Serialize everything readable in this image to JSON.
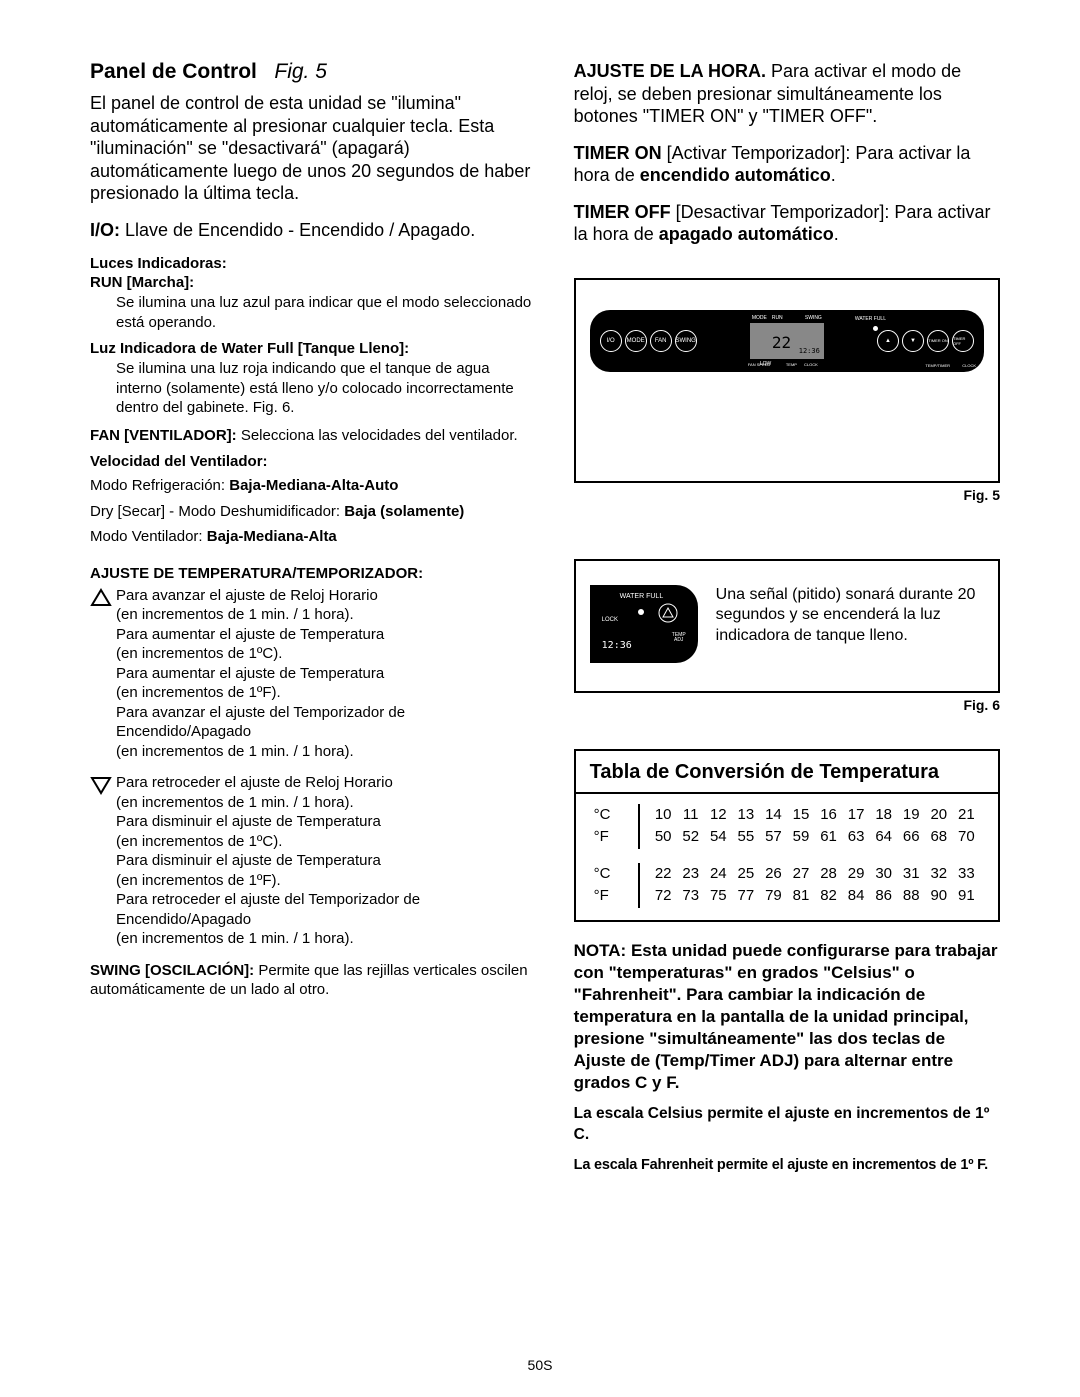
{
  "left": {
    "title_main": "Panel de Control",
    "title_fig": "Fig. 5",
    "intro": "El panel de control de esta unidad se \"ilumina\" automáticamente al presionar cualquier tecla. Esta \"iluminación\" se \"desactivará\" (apagará) automáticamente luego de unos 20 segundos de haber presionado la última tecla.",
    "io_label": "I/O:",
    "io_text": "  Llave de Encendido - Encendido / Apagado.",
    "luces_head": "Luces Indicadoras:",
    "run_head": "RUN [Marcha]:",
    "run_text": "Se ilumina una luz azul para indicar que el modo seleccionado está operando.",
    "waterfull_head": "Luz Indicadora de Water Full [Tanque Lleno]:",
    "waterfull_text": "Se ilumina una luz roja indicando que el tanque de agua interno (solamente) está lleno y/o colocado incorrectamente dentro del gabinete. Fig. 6.",
    "fan_label": "FAN [VENTILADOR]:",
    "fan_text": "  Selecciona las velocidades del ventilador.",
    "vel_head": "Velocidad del Ventilador:",
    "vel_cooling_pre": "Modo Refrigeración: ",
    "vel_cooling_b": "Baja-Mediana-Alta-Auto",
    "vel_dry_pre": "Dry [Secar] - Modo Deshumidificador: ",
    "vel_dry_b": "Baja (solamente)",
    "vel_fan_pre": "Modo Ventilador: ",
    "vel_fan_b": "Baja-Mediana-Alta",
    "ajuste_head": "AJUSTE DE TEMPERATURA/TEMPORIZADOR:",
    "up_text": "Para avanzar el ajuste de Reloj Horario\n(en incrementos de 1 min. / 1 hora).\nPara aumentar el ajuste de Temperatura\n(en incrementos de 1ºC).\nPara aumentar el ajuste de Temperatura\n(en incrementos de 1ºF).\nPara avanzar el ajuste del Temporizador de Encendido/Apagado\n(en incrementos de 1 min. / 1 hora).",
    "down_text": "Para retroceder el ajuste de Reloj Horario\n(en incrementos de 1 min. / 1 hora).\nPara disminuir el ajuste de Temperatura\n(en incrementos de 1ºC).\nPara disminuir el ajuste de Temperatura\n(en incrementos de 1ºF).\nPara retroceder el ajuste del Temporizador de Encendido/Apagado\n(en incrementos de 1 min. / 1 hora).",
    "swing_label": "SWING [OSCILACIÓN]:",
    "swing_text": "   Permite que las rejillas verticales oscilen automáticamente de un lado al otro."
  },
  "right": {
    "hora_label": "AJUSTE DE LA HORA.",
    "hora_text": " Para activar el modo de reloj, se deben presionar simultáneamente los botones \"TIMER ON\" y \"TIMER OFF\".",
    "timeron_label": "TIMER ON",
    "timeron_text": "  [Activar Temporizador]: Para activar la hora de ",
    "timeron_b": "encendido automático",
    "timeroff_label": "TIMER OFF",
    "timeroff_text": " [Desactivar Temporizador]: Para activar la hora de ",
    "timeroff_b": "apagado automático",
    "fig5_label": "Fig. 5",
    "panel": {
      "btns_left": [
        "I/O",
        "MODE",
        "FAN",
        "SWING"
      ],
      "disp_big": "22",
      "disp_clk": "12:36",
      "lbl_run": "RUN",
      "lbl_mode": "MODE",
      "lbl_swing": "SWING",
      "lbl_fan": "FAN SPEED",
      "lbl_low": "LOW",
      "lbl_temp": "TEMP",
      "lbl_clock": "CLOCK",
      "wf": "WATER FULL",
      "btns_right": [
        "▲",
        "▼",
        "TIMER ON",
        "TIMER OFF"
      ],
      "sub1": "TEMP/TIMER",
      "sub2": "ADJ",
      "right_clock": "CLOCK"
    },
    "fig6_label": "Fig. 6",
    "fig6_text": "Una señal (pitido) sonará durante 20 segundos y se encenderá la luz indicadora de tanque lleno.",
    "fig6_panel": {
      "wf": "WATER FULL",
      "lock": "LOCK",
      "clk": "12:36",
      "temp": "TEMP",
      "adj": "ADJ"
    },
    "conv": {
      "title": "Tabla de Conversión de Temperatura",
      "label_c": "°C",
      "label_f": "°F",
      "row1_c": [
        10,
        11,
        12,
        13,
        14,
        15,
        16,
        17,
        18,
        19,
        20,
        21
      ],
      "row1_f": [
        50,
        52,
        54,
        55,
        57,
        59,
        61,
        63,
        64,
        66,
        68,
        70
      ],
      "row2_c": [
        22,
        23,
        24,
        25,
        26,
        27,
        28,
        29,
        30,
        31,
        32,
        33
      ],
      "row2_f": [
        72,
        73,
        75,
        77,
        79,
        81,
        82,
        84,
        86,
        88,
        90,
        91
      ]
    },
    "nota": "NOTA: Esta unidad puede configurarse para trabajar con \"temperaturas\" en grados \"Celsius\" o \"Fahrenheit\". Para cambiar la indicación de temperatura en la pantalla de la unidad principal, presione \"simultáneamente\" las dos teclas de Ajuste de (Temp/Timer ADJ) para alternar entre grados C y F.",
    "scale_c": "La escala Celsius permite el ajuste en incrementos de 1º C.",
    "scale_f": "La escala Fahrenheit permite el ajuste en incrementos de 1º F."
  },
  "page_num": "50S"
}
